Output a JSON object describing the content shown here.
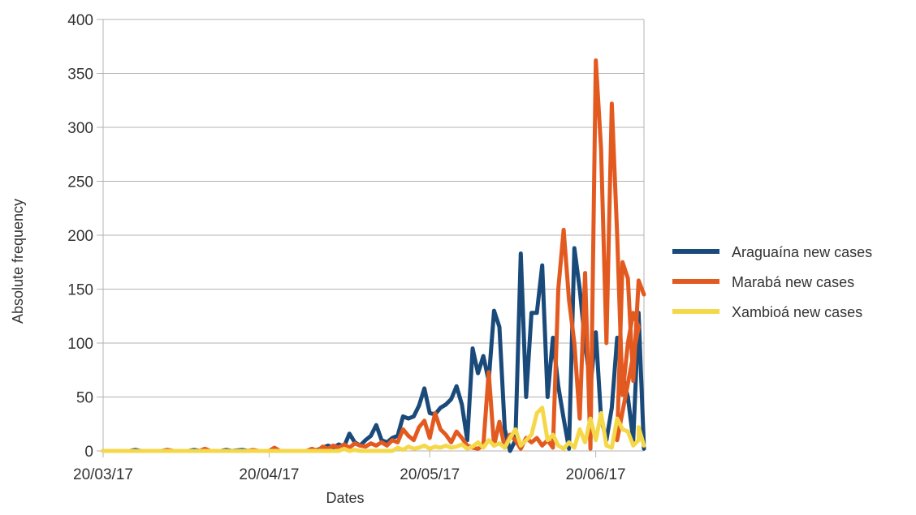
{
  "chart_data": {
    "type": "line",
    "title": "",
    "xlabel": "Dates",
    "ylabel": "Absolute frequency",
    "ylim": [
      0,
      400
    ],
    "yticks": [
      "0",
      "50",
      "100",
      "150",
      "200",
      "250",
      "300",
      "350",
      "400"
    ],
    "xlim": [
      "2020-03-17",
      "2020-06-26"
    ],
    "xticks": [
      {
        "date": "2020-03-17",
        "label": "20/03/17"
      },
      {
        "date": "2020-04-17",
        "label": "20/04/17"
      },
      {
        "date": "2020-05-17",
        "label": "20/05/17"
      },
      {
        "date": "2020-06-17",
        "label": "20/06/17"
      }
    ],
    "grid": "horizontal",
    "legend_position": "right",
    "series": [
      {
        "name": "Araguaína new cases",
        "color": "#1a4a7a",
        "points": [
          [
            "2020-03-17",
            0
          ],
          [
            "2020-03-22",
            0
          ],
          [
            "2020-03-23",
            1
          ],
          [
            "2020-03-24",
            0
          ],
          [
            "2020-03-28",
            0
          ],
          [
            "2020-03-29",
            1
          ],
          [
            "2020-03-30",
            0
          ],
          [
            "2020-04-02",
            0
          ],
          [
            "2020-04-03",
            1
          ],
          [
            "2020-04-04",
            0
          ],
          [
            "2020-04-08",
            0
          ],
          [
            "2020-04-09",
            1
          ],
          [
            "2020-04-10",
            0
          ],
          [
            "2020-04-12",
            1
          ],
          [
            "2020-04-13",
            0
          ],
          [
            "2020-04-25",
            0
          ],
          [
            "2020-04-26",
            1
          ],
          [
            "2020-04-27",
            3
          ],
          [
            "2020-04-28",
            5
          ],
          [
            "2020-04-29",
            3
          ],
          [
            "2020-04-30",
            6
          ],
          [
            "2020-05-01",
            4
          ],
          [
            "2020-05-02",
            16
          ],
          [
            "2020-05-03",
            8
          ],
          [
            "2020-05-04",
            5
          ],
          [
            "2020-05-05",
            10
          ],
          [
            "2020-05-06",
            14
          ],
          [
            "2020-05-07",
            24
          ],
          [
            "2020-05-08",
            10
          ],
          [
            "2020-05-09",
            8
          ],
          [
            "2020-05-10",
            12
          ],
          [
            "2020-05-11",
            14
          ],
          [
            "2020-05-12",
            32
          ],
          [
            "2020-05-13",
            30
          ],
          [
            "2020-05-14",
            32
          ],
          [
            "2020-05-15",
            42
          ],
          [
            "2020-05-16",
            58
          ],
          [
            "2020-05-17",
            35
          ],
          [
            "2020-05-18",
            34
          ],
          [
            "2020-05-19",
            40
          ],
          [
            "2020-05-20",
            43
          ],
          [
            "2020-05-21",
            48
          ],
          [
            "2020-05-22",
            60
          ],
          [
            "2020-05-23",
            43
          ],
          [
            "2020-05-24",
            10
          ],
          [
            "2020-05-25",
            95
          ],
          [
            "2020-05-26",
            72
          ],
          [
            "2020-05-27",
            88
          ],
          [
            "2020-05-28",
            65
          ],
          [
            "2020-05-29",
            130
          ],
          [
            "2020-05-30",
            115
          ],
          [
            "2020-05-31",
            20
          ],
          [
            "2020-06-01",
            0
          ],
          [
            "2020-06-02",
            10
          ],
          [
            "2020-06-03",
            183
          ],
          [
            "2020-06-04",
            50
          ],
          [
            "2020-06-05",
            128
          ],
          [
            "2020-06-06",
            128
          ],
          [
            "2020-06-07",
            172
          ],
          [
            "2020-06-08",
            50
          ],
          [
            "2020-06-09",
            105
          ],
          [
            "2020-06-10",
            60
          ],
          [
            "2020-06-11",
            30
          ],
          [
            "2020-06-12",
            2
          ],
          [
            "2020-06-13",
            188
          ],
          [
            "2020-06-14",
            150
          ],
          [
            "2020-06-15",
            100
          ],
          [
            "2020-06-16",
            60
          ],
          [
            "2020-06-17",
            110
          ],
          [
            "2020-06-18",
            30
          ],
          [
            "2020-06-19",
            10
          ],
          [
            "2020-06-20",
            40
          ],
          [
            "2020-06-21",
            105
          ],
          [
            "2020-06-22",
            70
          ],
          [
            "2020-06-23",
            50
          ],
          [
            "2020-06-24",
            10
          ],
          [
            "2020-06-25",
            128
          ],
          [
            "2020-06-26",
            2
          ]
        ]
      },
      {
        "name": "Marabá new cases",
        "color": "#e35a20",
        "points": [
          [
            "2020-03-17",
            0
          ],
          [
            "2020-03-28",
            0
          ],
          [
            "2020-03-29",
            1
          ],
          [
            "2020-03-30",
            0
          ],
          [
            "2020-04-04",
            0
          ],
          [
            "2020-04-05",
            2
          ],
          [
            "2020-04-06",
            0
          ],
          [
            "2020-04-13",
            0
          ],
          [
            "2020-04-14",
            1
          ],
          [
            "2020-04-15",
            0
          ],
          [
            "2020-04-17",
            0
          ],
          [
            "2020-04-18",
            3
          ],
          [
            "2020-04-19",
            0
          ],
          [
            "2020-04-24",
            0
          ],
          [
            "2020-04-25",
            2
          ],
          [
            "2020-04-26",
            0
          ],
          [
            "2020-04-27",
            4
          ],
          [
            "2020-04-28",
            2
          ],
          [
            "2020-04-29",
            5
          ],
          [
            "2020-04-30",
            3
          ],
          [
            "2020-05-01",
            6
          ],
          [
            "2020-05-02",
            3
          ],
          [
            "2020-05-03",
            7
          ],
          [
            "2020-05-04",
            5
          ],
          [
            "2020-05-05",
            4
          ],
          [
            "2020-05-06",
            7
          ],
          [
            "2020-05-07",
            5
          ],
          [
            "2020-05-08",
            8
          ],
          [
            "2020-05-09",
            5
          ],
          [
            "2020-05-10",
            10
          ],
          [
            "2020-05-11",
            8
          ],
          [
            "2020-05-12",
            20
          ],
          [
            "2020-05-13",
            14
          ],
          [
            "2020-05-14",
            10
          ],
          [
            "2020-05-15",
            22
          ],
          [
            "2020-05-16",
            28
          ],
          [
            "2020-05-17",
            12
          ],
          [
            "2020-05-18",
            35
          ],
          [
            "2020-05-19",
            20
          ],
          [
            "2020-05-20",
            15
          ],
          [
            "2020-05-21",
            8
          ],
          [
            "2020-05-22",
            18
          ],
          [
            "2020-05-23",
            12
          ],
          [
            "2020-05-24",
            5
          ],
          [
            "2020-05-25",
            3
          ],
          [
            "2020-05-26",
            2
          ],
          [
            "2020-05-27",
            5
          ],
          [
            "2020-05-28",
            73
          ],
          [
            "2020-05-29",
            5
          ],
          [
            "2020-05-30",
            27
          ],
          [
            "2020-05-31",
            3
          ],
          [
            "2020-06-01",
            15
          ],
          [
            "2020-06-02",
            10
          ],
          [
            "2020-06-03",
            2
          ],
          [
            "2020-06-04",
            12
          ],
          [
            "2020-06-05",
            8
          ],
          [
            "2020-06-06",
            12
          ],
          [
            "2020-06-07",
            5
          ],
          [
            "2020-06-08",
            10
          ],
          [
            "2020-06-09",
            3
          ],
          [
            "2020-06-10",
            150
          ],
          [
            "2020-06-11",
            205
          ],
          [
            "2020-06-12",
            140
          ],
          [
            "2020-06-13",
            100
          ],
          [
            "2020-06-14",
            30
          ],
          [
            "2020-06-15",
            165
          ],
          [
            "2020-06-16",
            2
          ],
          [
            "2020-06-17",
            362
          ],
          [
            "2020-06-18",
            280
          ],
          [
            "2020-06-19",
            100
          ],
          [
            "2020-06-20",
            322
          ],
          [
            "2020-06-21",
            200
          ],
          [
            "2020-06-22",
            52
          ],
          [
            "2020-06-23",
            100
          ],
          [
            "2020-06-24",
            128
          ],
          [
            "2020-06-25",
            115
          ],
          [
            "2020-06-26",
            10
          ],
          [
            "2020-06-26",
            175
          ],
          [
            "2020-06-26",
            160
          ],
          [
            "2020-06-26",
            65
          ],
          [
            "2020-06-26",
            158
          ],
          [
            "2020-06-26",
            145
          ]
        ]
      },
      {
        "name": "Xambioá new cases",
        "color": "#f5d84a",
        "points": [
          [
            "2020-03-17",
            0
          ],
          [
            "2020-04-30",
            0
          ],
          [
            "2020-05-01",
            2
          ],
          [
            "2020-05-02",
            0
          ],
          [
            "2020-05-03",
            1
          ],
          [
            "2020-05-04",
            0
          ],
          [
            "2020-05-10",
            0
          ],
          [
            "2020-05-11",
            3
          ],
          [
            "2020-05-12",
            1
          ],
          [
            "2020-05-13",
            4
          ],
          [
            "2020-05-14",
            2
          ],
          [
            "2020-05-15",
            3
          ],
          [
            "2020-05-16",
            5
          ],
          [
            "2020-05-17",
            2
          ],
          [
            "2020-05-18",
            4
          ],
          [
            "2020-05-19",
            3
          ],
          [
            "2020-05-20",
            5
          ],
          [
            "2020-05-21",
            3
          ],
          [
            "2020-05-22",
            4
          ],
          [
            "2020-05-23",
            6
          ],
          [
            "2020-05-24",
            2
          ],
          [
            "2020-05-25",
            4
          ],
          [
            "2020-05-26",
            8
          ],
          [
            "2020-05-27",
            3
          ],
          [
            "2020-05-28",
            10
          ],
          [
            "2020-05-29",
            5
          ],
          [
            "2020-05-30",
            7
          ],
          [
            "2020-05-31",
            3
          ],
          [
            "2020-06-01",
            12
          ],
          [
            "2020-06-02",
            20
          ],
          [
            "2020-06-03",
            5
          ],
          [
            "2020-06-04",
            10
          ],
          [
            "2020-06-05",
            15
          ],
          [
            "2020-06-06",
            35
          ],
          [
            "2020-06-07",
            40
          ],
          [
            "2020-06-08",
            10
          ],
          [
            "2020-06-09",
            15
          ],
          [
            "2020-06-10",
            5
          ],
          [
            "2020-06-11",
            2
          ],
          [
            "2020-06-12",
            8
          ],
          [
            "2020-06-13",
            3
          ],
          [
            "2020-06-14",
            20
          ],
          [
            "2020-06-15",
            8
          ],
          [
            "2020-06-16",
            30
          ],
          [
            "2020-06-17",
            10
          ],
          [
            "2020-06-18",
            35
          ],
          [
            "2020-06-19",
            5
          ],
          [
            "2020-06-20",
            3
          ],
          [
            "2020-06-21",
            30
          ],
          [
            "2020-06-22",
            20
          ],
          [
            "2020-06-23",
            18
          ],
          [
            "2020-06-24",
            5
          ],
          [
            "2020-06-25",
            10
          ],
          [
            "2020-06-26",
            22
          ],
          [
            "2020-06-26",
            5
          ]
        ]
      }
    ]
  }
}
